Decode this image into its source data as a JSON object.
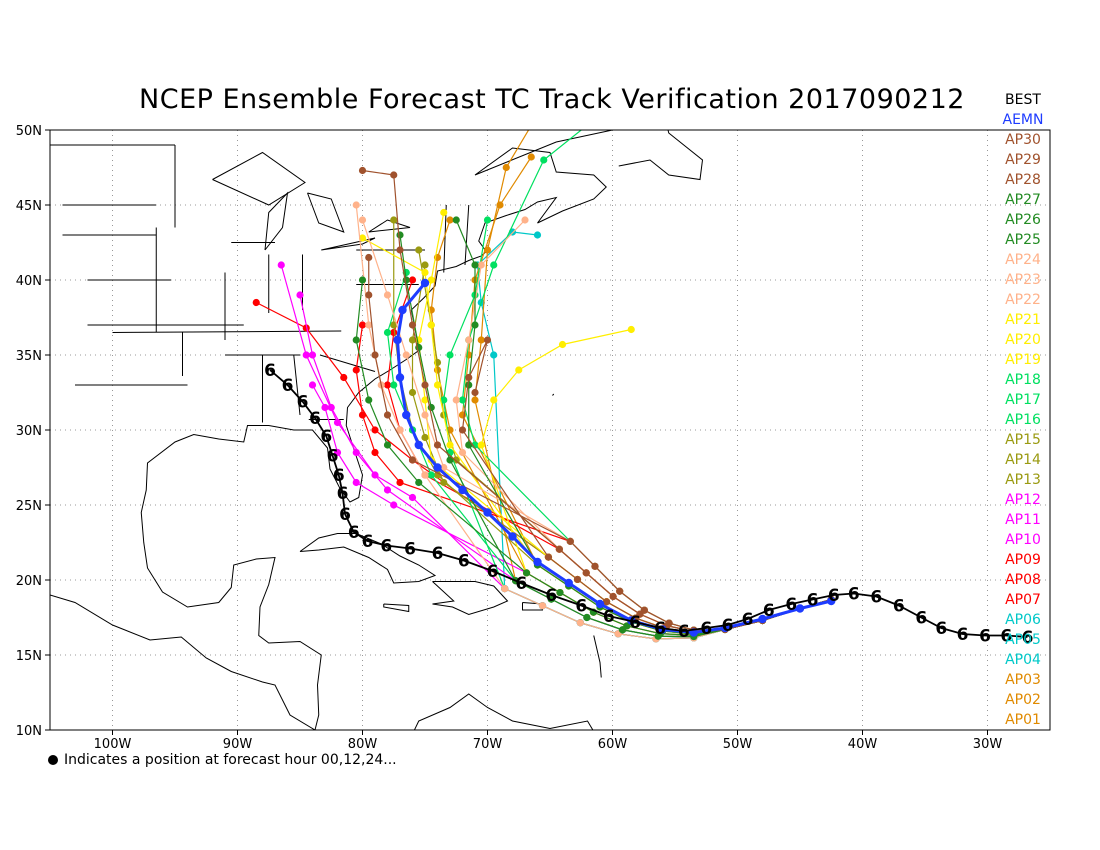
{
  "title": "NCEP Ensemble Forecast TC Track Verification 2017090212",
  "footnote": "Indicates a position at forecast hour 00,12,24...",
  "axes": {
    "lon_labels": [
      "100W",
      "90W",
      "80W",
      "70W",
      "60W",
      "50W",
      "40W",
      "30W"
    ],
    "lat_labels": [
      "50N",
      "45N",
      "40N",
      "35N",
      "30N",
      "25N",
      "20N",
      "15N",
      "10N"
    ]
  },
  "legend": [
    {
      "label": "BEST",
      "color": "#000000"
    },
    {
      "label": "AEMN",
      "color": "#1e3cff"
    },
    {
      "label": "AP30",
      "color": "#a0522d"
    },
    {
      "label": "AP29",
      "color": "#a0522d"
    },
    {
      "label": "AP28",
      "color": "#a0522d"
    },
    {
      "label": "AP27",
      "color": "#228b22"
    },
    {
      "label": "AP26",
      "color": "#228b22"
    },
    {
      "label": "AP25",
      "color": "#228b22"
    },
    {
      "label": "AP24",
      "color": "#ffb28a"
    },
    {
      "label": "AP23",
      "color": "#ffb28a"
    },
    {
      "label": "AP22",
      "color": "#ffb28a"
    },
    {
      "label": "AP21",
      "color": "#ffee00"
    },
    {
      "label": "AP20",
      "color": "#ffee00"
    },
    {
      "label": "AP19",
      "color": "#ffee00"
    },
    {
      "label": "AP18",
      "color": "#00e060"
    },
    {
      "label": "AP17",
      "color": "#00e060"
    },
    {
      "label": "AP16",
      "color": "#00e060"
    },
    {
      "label": "AP15",
      "color": "#9a9a10"
    },
    {
      "label": "AP14",
      "color": "#9a9a10"
    },
    {
      "label": "AP13",
      "color": "#9a9a10"
    },
    {
      "label": "AP12",
      "color": "#ff00ff"
    },
    {
      "label": "AP11",
      "color": "#ff00ff"
    },
    {
      "label": "AP10",
      "color": "#ff00ff"
    },
    {
      "label": "AP09",
      "color": "#ff0000"
    },
    {
      "label": "AP08",
      "color": "#ff0000"
    },
    {
      "label": "AP07",
      "color": "#ff0000"
    },
    {
      "label": "AP06",
      "color": "#00c8c8"
    },
    {
      "label": "AP05",
      "color": "#00c8c8"
    },
    {
      "label": "AP04",
      "color": "#00c8c8"
    },
    {
      "label": "AP03",
      "color": "#e08a00"
    },
    {
      "label": "AP02",
      "color": "#e08a00"
    },
    {
      "label": "AP01",
      "color": "#e08a00"
    }
  ],
  "best_track": [
    [
      -26.8,
      16.2
    ],
    [
      -28.5,
      16.3
    ],
    [
      -30.2,
      16.3
    ],
    [
      -32.0,
      16.4
    ],
    [
      -33.7,
      16.8
    ],
    [
      -35.3,
      17.5
    ],
    [
      -37.1,
      18.3
    ],
    [
      -38.9,
      18.9
    ],
    [
      -40.7,
      19.1
    ],
    [
      -42.3,
      19.0
    ],
    [
      -44.0,
      18.7
    ],
    [
      -45.7,
      18.4
    ],
    [
      -47.5,
      18.0
    ],
    [
      -49.2,
      17.4
    ],
    [
      -50.8,
      17.0
    ],
    [
      -52.5,
      16.8
    ],
    [
      -54.3,
      16.6
    ],
    [
      -56.2,
      16.8
    ],
    [
      -58.2,
      17.2
    ],
    [
      -60.3,
      17.6
    ],
    [
      -62.5,
      18.3
    ],
    [
      -64.9,
      19.0
    ],
    [
      -67.3,
      19.8
    ],
    [
      -69.6,
      20.6
    ],
    [
      -71.9,
      21.3
    ],
    [
      -74.0,
      21.8
    ],
    [
      -76.2,
      22.1
    ],
    [
      -78.1,
      22.3
    ],
    [
      -79.6,
      22.6
    ],
    [
      -80.7,
      23.2
    ],
    [
      -81.4,
      24.4
    ],
    [
      -81.6,
      25.8
    ],
    [
      -81.9,
      27.0
    ],
    [
      -82.4,
      28.3
    ],
    [
      -82.9,
      29.6
    ],
    [
      -83.8,
      30.8
    ],
    [
      -84.8,
      31.9
    ],
    [
      -86.0,
      33.0
    ],
    [
      -87.4,
      34.0
    ]
  ],
  "aemn_track": [
    [
      -42.5,
      18.6
    ],
    [
      -45.0,
      18.1
    ],
    [
      -48.0,
      17.4
    ],
    [
      -51.0,
      16.8
    ],
    [
      -53.5,
      16.5
    ],
    [
      -56.0,
      16.7
    ],
    [
      -58.5,
      17.3
    ],
    [
      -61.0,
      18.4
    ],
    [
      -63.5,
      19.8
    ],
    [
      -66.0,
      21.2
    ],
    [
      -68.0,
      22.9
    ],
    [
      -70.0,
      24.5
    ],
    [
      -72.0,
      26.0
    ],
    [
      -74.0,
      27.5
    ],
    [
      -75.5,
      29.0
    ],
    [
      -76.5,
      31.0
    ],
    [
      -77.0,
      33.5
    ],
    [
      -77.2,
      36.0
    ],
    [
      -76.8,
      38.0
    ],
    [
      -75.0,
      39.8
    ]
  ],
  "member_tracks": [
    {
      "color": "#00c8c8",
      "end": [
        [
          -69.5,
          35.0
        ],
        [
          -70.5,
          38.5
        ],
        [
          -70.8,
          41.0
        ],
        [
          -68.0,
          43.2
        ],
        [
          -66.0,
          43.0
        ]
      ]
    },
    {
      "color": "#e08a00",
      "end": [
        [
          -71.0,
          32.0
        ],
        [
          -70.5,
          36.0
        ],
        [
          -70.0,
          42.0
        ],
        [
          -68.5,
          47.5
        ],
        [
          -66.5,
          50.3
        ]
      ]
    },
    {
      "color": "#e08a00",
      "end": [
        [
          -73.0,
          30.0
        ],
        [
          -74.0,
          34.0
        ],
        [
          -74.5,
          38.0
        ],
        [
          -74.0,
          41.5
        ],
        [
          -73.0,
          44.0
        ]
      ]
    },
    {
      "color": "#e08a00",
      "end": [
        [
          -72.0,
          31.0
        ],
        [
          -71.5,
          35.0
        ],
        [
          -71.0,
          40.0
        ],
        [
          -69.0,
          45.0
        ],
        [
          -66.5,
          48.2
        ]
      ]
    },
    {
      "color": "#ff0000",
      "end": [
        [
          -76.0,
          28.0
        ],
        [
          -79.0,
          30.0
        ],
        [
          -81.5,
          33.5
        ],
        [
          -84.5,
          36.8
        ],
        [
          -88.5,
          38.5
        ]
      ]
    },
    {
      "color": "#ff0000",
      "end": [
        [
          -75.0,
          27.0
        ],
        [
          -77.0,
          30.0
        ],
        [
          -78.0,
          33.0
        ],
        [
          -77.5,
          36.5
        ],
        [
          -76.0,
          40.0
        ]
      ]
    },
    {
      "color": "#ff0000",
      "end": [
        [
          -77.0,
          26.5
        ],
        [
          -79.0,
          28.5
        ],
        [
          -80.0,
          31.0
        ],
        [
          -80.5,
          34.0
        ],
        [
          -80.0,
          37.0
        ]
      ]
    },
    {
      "color": "#ff00ff",
      "end": [
        [
          -76.0,
          25.5
        ],
        [
          -79.0,
          27.0
        ],
        [
          -82.0,
          30.5
        ],
        [
          -84.5,
          35.0
        ],
        [
          -86.5,
          41.0
        ]
      ]
    },
    {
      "color": "#ff00ff",
      "end": [
        [
          -78.0,
          26.0
        ],
        [
          -80.5,
          28.5
        ],
        [
          -82.5,
          31.5
        ],
        [
          -84.0,
          35.0
        ],
        [
          -85.0,
          39.0
        ]
      ]
    },
    {
      "color": "#ff00ff",
      "end": [
        [
          -77.5,
          25.0
        ],
        [
          -80.5,
          26.5
        ],
        [
          -82.0,
          28.5
        ],
        [
          -83.0,
          31.5
        ],
        [
          -84.0,
          33.0
        ]
      ]
    },
    {
      "color": "#9a9a10",
      "end": [
        [
          -74.0,
          27.0
        ],
        [
          -76.0,
          30.0
        ],
        [
          -77.0,
          33.5
        ],
        [
          -77.5,
          37.0
        ],
        [
          -77.5,
          44.0
        ]
      ]
    },
    {
      "color": "#9a9a10",
      "end": [
        [
          -73.5,
          26.5
        ],
        [
          -75.0,
          29.5
        ],
        [
          -76.0,
          32.5
        ],
        [
          -76.0,
          36.0
        ],
        [
          -75.0,
          41.0
        ]
      ]
    },
    {
      "color": "#9a9a10",
      "end": [
        [
          -72.5,
          28.0
        ],
        [
          -73.5,
          31.0
        ],
        [
          -74.0,
          34.5
        ],
        [
          -74.5,
          37.0
        ],
        [
          -75.5,
          42.0
        ]
      ]
    },
    {
      "color": "#00e060",
      "end": [
        [
          -71.0,
          29.0
        ],
        [
          -72.0,
          32.0
        ],
        [
          -71.5,
          36.0
        ],
        [
          -69.5,
          41.0
        ],
        [
          -65.5,
          48.0
        ],
        [
          -61.0,
          51.0
        ]
      ]
    },
    {
      "color": "#00e060",
      "end": [
        [
          -73.0,
          28.5
        ],
        [
          -73.5,
          32.0
        ],
        [
          -73.0,
          35.0
        ],
        [
          -71.0,
          39.0
        ],
        [
          -70.0,
          44.0
        ]
      ]
    },
    {
      "color": "#00e060",
      "end": [
        [
          -74.5,
          27.0
        ],
        [
          -76.0,
          30.0
        ],
        [
          -77.5,
          33.0
        ],
        [
          -78.0,
          36.5
        ],
        [
          -76.5,
          40.5
        ]
      ]
    },
    {
      "color": "#ffee00",
      "end": [
        [
          -70.5,
          29.0
        ],
        [
          -69.5,
          32.0
        ],
        [
          -67.5,
          34.0
        ],
        [
          -64.0,
          35.7
        ],
        [
          -58.5,
          36.7
        ]
      ]
    },
    {
      "color": "#ffee00",
      "end": [
        [
          -73.0,
          29.0
        ],
        [
          -74.0,
          33.0
        ],
        [
          -74.5,
          37.0
        ],
        [
          -75.0,
          40.5
        ],
        [
          -80.0,
          42.8
        ]
      ]
    },
    {
      "color": "#ffee00",
      "end": [
        [
          -74.5,
          28.0
        ],
        [
          -75.0,
          32.0
        ],
        [
          -75.5,
          36.0
        ],
        [
          -74.5,
          40.0
        ],
        [
          -73.5,
          44.5
        ]
      ]
    },
    {
      "color": "#ffb28a",
      "end": [
        [
          -72.0,
          28.5
        ],
        [
          -72.5,
          32.0
        ],
        [
          -71.5,
          36.0
        ],
        [
          -70.5,
          41.0
        ],
        [
          -67.0,
          44.0
        ]
      ]
    },
    {
      "color": "#ffb28a",
      "end": [
        [
          -73.5,
          27.5
        ],
        [
          -75.0,
          31.0
        ],
        [
          -76.5,
          35.0
        ],
        [
          -78.0,
          39.0
        ],
        [
          -80.0,
          44.0
        ]
      ]
    },
    {
      "color": "#ffb28a",
      "end": [
        [
          -75.0,
          27.0
        ],
        [
          -77.0,
          30.0
        ],
        [
          -78.5,
          33.0
        ],
        [
          -79.5,
          37.0
        ],
        [
          -80.5,
          45.0
        ]
      ]
    },
    {
      "color": "#228b22",
      "end": [
        [
          -73.0,
          28.0
        ],
        [
          -74.5,
          31.5
        ],
        [
          -75.5,
          35.5
        ],
        [
          -76.5,
          40.0
        ],
        [
          -77.0,
          43.0
        ]
      ]
    },
    {
      "color": "#228b22",
      "end": [
        [
          -75.5,
          26.5
        ],
        [
          -78.0,
          29.0
        ],
        [
          -79.5,
          32.0
        ],
        [
          -80.5,
          36.0
        ],
        [
          -80.0,
          40.0
        ]
      ]
    },
    {
      "color": "#228b22",
      "end": [
        [
          -71.5,
          29.0
        ],
        [
          -71.5,
          33.0
        ],
        [
          -71.0,
          37.0
        ],
        [
          -71.0,
          41.0
        ],
        [
          -72.5,
          44.0
        ]
      ]
    },
    {
      "color": "#a0522d",
      "end": [
        [
          -72.0,
          30.0
        ],
        [
          -71.5,
          33.5
        ],
        [
          -70.0,
          36.0
        ],
        [
          -71.0,
          32.5
        ]
      ]
    },
    {
      "color": "#a0522d",
      "end": [
        [
          -74.0,
          29.0
        ],
        [
          -75.0,
          33.0
        ],
        [
          -76.0,
          37.0
        ],
        [
          -77.0,
          42.0
        ],
        [
          -77.5,
          47.0
        ],
        [
          -80.0,
          47.3
        ]
      ]
    },
    {
      "color": "#a0522d",
      "end": [
        [
          -76.0,
          28.0
        ],
        [
          -78.0,
          31.0
        ],
        [
          -79.0,
          35.0
        ],
        [
          -79.5,
          39.0
        ],
        [
          -79.5,
          41.5
        ]
      ]
    }
  ]
}
